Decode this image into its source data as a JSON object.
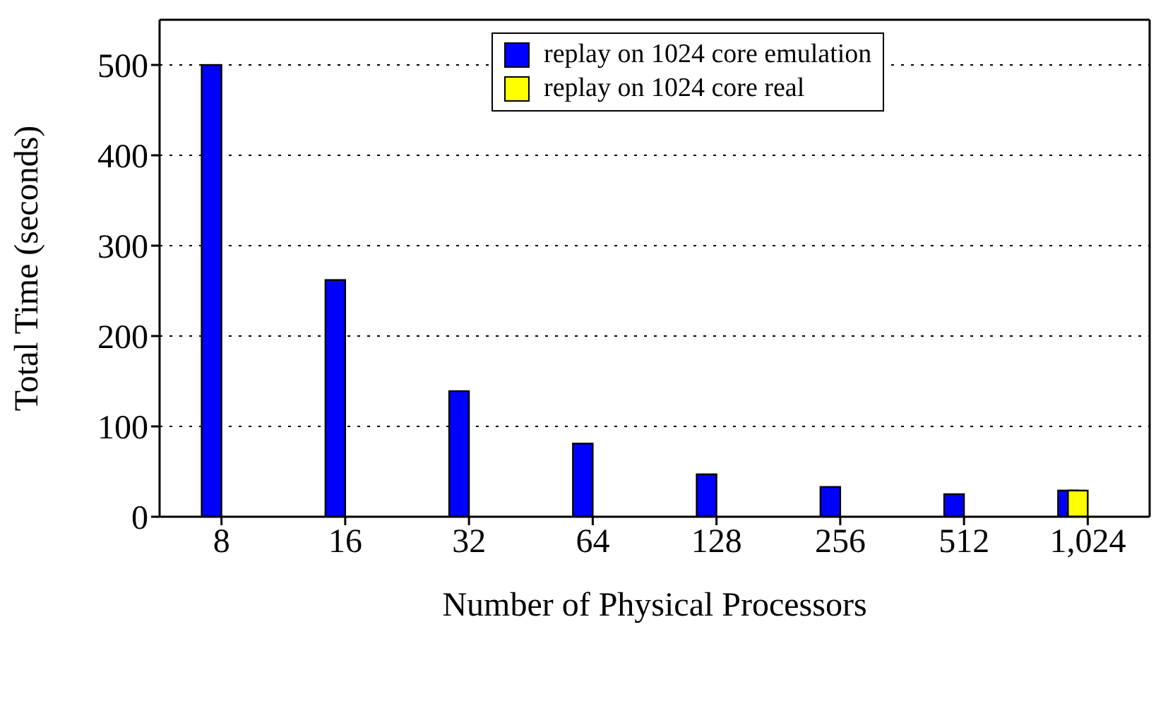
{
  "chart_data": {
    "type": "bar",
    "ylabel": "Total Time (seconds)",
    "xlabel": "Number of Physical Processors",
    "categories": [
      "8",
      "16",
      "32",
      "64",
      "128",
      "256",
      "512",
      "1,024"
    ],
    "series": [
      {
        "name": "replay on 1024 core emulation",
        "color": "#0000ff",
        "values": [
          500,
          262,
          139,
          81,
          47,
          33,
          25,
          29
        ]
      },
      {
        "name": "replay on 1024 core real",
        "color": "#ffff00",
        "values": [
          null,
          null,
          null,
          null,
          null,
          null,
          null,
          29
        ]
      }
    ],
    "ylim": [
      0,
      550
    ],
    "yticks": [
      0,
      100,
      200,
      300,
      400,
      500
    ],
    "grid": "y",
    "legend": "top"
  }
}
